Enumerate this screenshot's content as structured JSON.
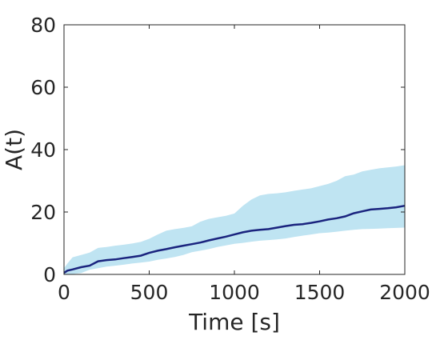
{
  "chart_data": {
    "type": "line",
    "xlabel": "Time [s]",
    "ylabel": "A(t)",
    "xlim": [
      0,
      2000
    ],
    "ylim": [
      0,
      80
    ],
    "xticks": [
      0,
      500,
      1000,
      1500,
      2000
    ],
    "yticks": [
      0,
      20,
      40,
      60,
      80
    ],
    "xtick_labels": [
      "0",
      "500",
      "1000",
      "1500",
      "2000"
    ],
    "ytick_labels": [
      "0",
      "20",
      "40",
      "60",
      "80"
    ],
    "grid": false,
    "colors": {
      "line": "#1a237e",
      "band": "#bfe4f2"
    },
    "series": [
      {
        "x": [
          0,
          20,
          50,
          100,
          150,
          200,
          250,
          300,
          350,
          400,
          450,
          500,
          550,
          600,
          650,
          700,
          750,
          800,
          850,
          900,
          950,
          1000,
          1050,
          1100,
          1150,
          1200,
          1250,
          1300,
          1350,
          1400,
          1450,
          1500,
          1550,
          1600,
          1650,
          1700,
          1750,
          1800,
          1850,
          1900,
          1950,
          2000
        ],
        "y": [
          0.5,
          1.2,
          1.6,
          2.3,
          2.8,
          4.2,
          4.6,
          4.8,
          5.2,
          5.6,
          6.0,
          6.9,
          7.6,
          8.1,
          8.7,
          9.2,
          9.7,
          10.2,
          10.9,
          11.5,
          12.1,
          12.8,
          13.5,
          14.0,
          14.3,
          14.5,
          15.0,
          15.5,
          15.9,
          16.1,
          16.5,
          17.0,
          17.6,
          18.0,
          18.6,
          19.6,
          20.2,
          20.8,
          21.0,
          21.2,
          21.5,
          22.0
        ],
        "lower": [
          0.0,
          0.0,
          0.1,
          0.4,
          1.5,
          2.0,
          2.5,
          2.8,
          3.1,
          3.5,
          3.8,
          4.1,
          4.7,
          5.1,
          5.6,
          6.2,
          7.1,
          7.6,
          8.1,
          8.8,
          9.3,
          9.8,
          10.1,
          10.5,
          10.8,
          11.0,
          11.2,
          11.5,
          12.0,
          12.4,
          12.8,
          13.2,
          13.4,
          13.7,
          14.0,
          14.3,
          14.5,
          14.6,
          14.7,
          14.8,
          14.9,
          15.0
        ],
        "upper": [
          2.0,
          3.5,
          5.5,
          6.2,
          7.0,
          8.5,
          8.8,
          9.2,
          9.5,
          9.9,
          10.4,
          11.4,
          12.8,
          14.0,
          14.5,
          14.9,
          15.4,
          16.9,
          17.8,
          18.3,
          18.8,
          19.5,
          22.0,
          24.0,
          25.3,
          25.8,
          26.0,
          26.3,
          26.8,
          27.2,
          27.6,
          28.3,
          29.0,
          30.0,
          31.5,
          32.0,
          33.0,
          33.5,
          34.0,
          34.3,
          34.6,
          35.0
        ]
      }
    ]
  }
}
